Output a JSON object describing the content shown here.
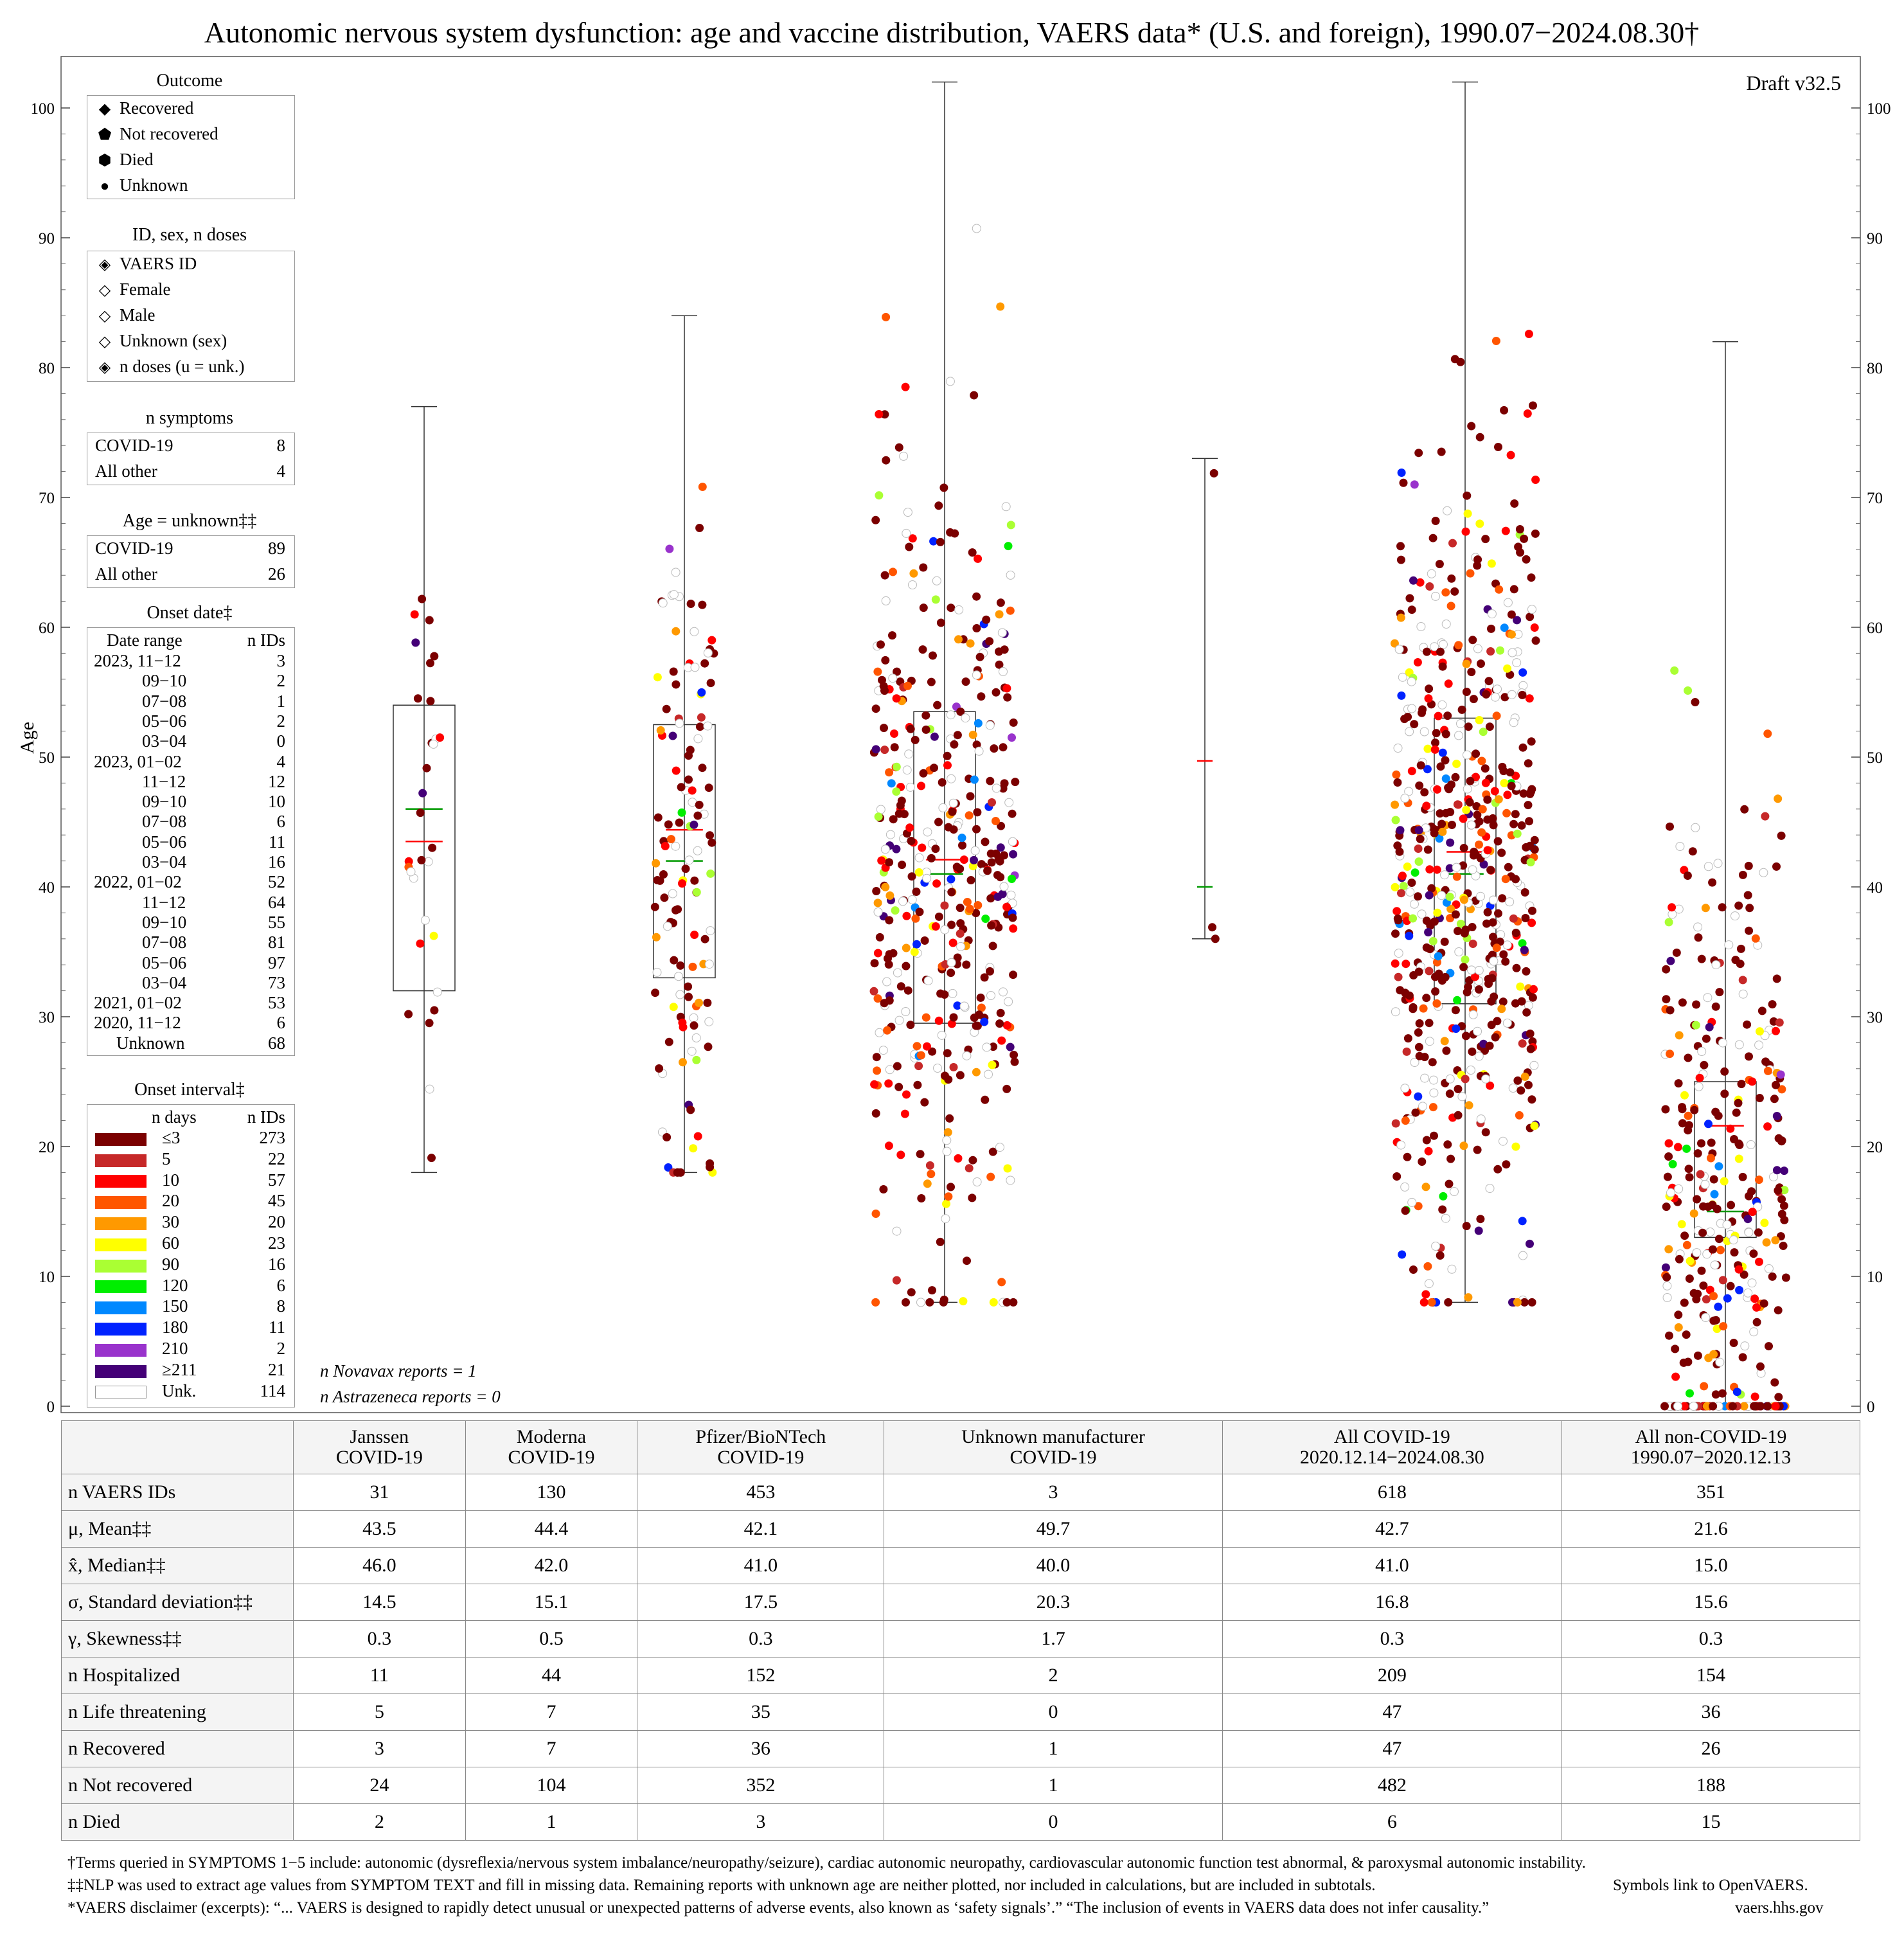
{
  "title": "Autonomic nervous system dysfunction: age and vaccine distribution, VAERS data* (U.S. and foreign), 1990.07−2024.08.30†",
  "draft": "Draft v32.5",
  "y_axis_label": "Age",
  "legend_outcome": {
    "title": "Outcome",
    "items": [
      {
        "symbol": "◆",
        "label": "Recovered"
      },
      {
        "symbol": "⬟",
        "label": "Not recovered"
      },
      {
        "symbol": "⬢",
        "label": "Died"
      },
      {
        "symbol": "●",
        "label": "Unknown"
      }
    ]
  },
  "legend_id": {
    "title": "ID, sex, n doses",
    "items": [
      {
        "symbol": "◈",
        "label": "VAERS ID"
      },
      {
        "symbol": "◇",
        "label": "Female"
      },
      {
        "symbol": "◇",
        "label": "Male"
      },
      {
        "symbol": "◇",
        "label": "Unknown (sex)"
      },
      {
        "symbol": "◈",
        "label": "n doses (u = unk.)"
      }
    ]
  },
  "legend_symptoms": {
    "title": "n symptoms",
    "rows": [
      {
        "label": "COVID-19",
        "value": "8"
      },
      {
        "label": "All other",
        "value": "4"
      }
    ]
  },
  "legend_age_unknown": {
    "title": "Age = unknown‡‡",
    "rows": [
      {
        "label": "COVID-19",
        "value": "89"
      },
      {
        "label": "All other",
        "value": "26"
      }
    ]
  },
  "legend_onset_date": {
    "title": "Onset date‡",
    "header_left": "Date range",
    "header_right": "n IDs",
    "rows": [
      {
        "label": "2023, 11−12",
        "value": "3"
      },
      {
        "label": "09−10",
        "value": "2"
      },
      {
        "label": "07−08",
        "value": "1"
      },
      {
        "label": "05−06",
        "value": "2"
      },
      {
        "label": "03−04",
        "value": "0"
      },
      {
        "label": "2023, 01−02",
        "value": "4"
      },
      {
        "label": "11−12",
        "value": "12"
      },
      {
        "label": "09−10",
        "value": "10"
      },
      {
        "label": "07−08",
        "value": "6"
      },
      {
        "label": "05−06",
        "value": "11"
      },
      {
        "label": "03−04",
        "value": "16"
      },
      {
        "label": "2022, 01−02",
        "value": "52"
      },
      {
        "label": "11−12",
        "value": "64"
      },
      {
        "label": "09−10",
        "value": "55"
      },
      {
        "label": "07−08",
        "value": "81"
      },
      {
        "label": "05−06",
        "value": "97"
      },
      {
        "label": "03−04",
        "value": "73"
      },
      {
        "label": "2021, 01−02",
        "value": "53"
      },
      {
        "label": "2020, 11−12",
        "value": "6"
      },
      {
        "label": "Unknown",
        "value": "68"
      }
    ]
  },
  "legend_onset_interval": {
    "title": "Onset interval‡",
    "header_left": "n days",
    "header_right": "n IDs",
    "rows": [
      {
        "label": "≤3",
        "value": "273",
        "color": "#7b0000"
      },
      {
        "label": "5",
        "value": "22",
        "color": "#c62828"
      },
      {
        "label": "10",
        "value": "57",
        "color": "#ff0000"
      },
      {
        "label": "20",
        "value": "45",
        "color": "#ff5500"
      },
      {
        "label": "30",
        "value": "20",
        "color": "#ff9900"
      },
      {
        "label": "60",
        "value": "23",
        "color": "#ffff00"
      },
      {
        "label": "90",
        "value": "16",
        "color": "#aaff33"
      },
      {
        "label": "120",
        "value": "6",
        "color": "#00ee00"
      },
      {
        "label": "150",
        "value": "8",
        "color": "#0088ff"
      },
      {
        "label": "180",
        "value": "11",
        "color": "#0022ff"
      },
      {
        "label": "210",
        "value": "2",
        "color": "#9933cc"
      },
      {
        "label": "≥211",
        "value": "21",
        "color": "#440077"
      },
      {
        "label": "Unk.",
        "value": "114",
        "color": "#ffffff"
      }
    ]
  },
  "notes": {
    "novavax": "n Novavax reports = 1",
    "astrazeneca": "n Astrazeneca reports = 0"
  },
  "chart_data": {
    "type": "scatter",
    "ylabel": "Age",
    "ylim": [
      0,
      102
    ],
    "y_ticks": [
      0,
      10,
      20,
      30,
      40,
      50,
      60,
      70,
      80,
      90,
      100
    ],
    "categories": [
      "Janssen COVID-19",
      "Moderna COVID-19",
      "Pfizer/BioNTech COVID-19",
      "Unknown manufacturer COVID-19",
      "All COVID-19",
      "All non-COVID-19"
    ],
    "boxes": [
      {
        "category": "Janssen COVID-19",
        "min": 18,
        "q1": 32,
        "median": 46,
        "mean": 43.5,
        "q3": 54,
        "max": 77
      },
      {
        "category": "Moderna COVID-19",
        "min": 18,
        "q1": 33,
        "median": 42,
        "mean": 44.4,
        "q3": 52.5,
        "max": 84
      },
      {
        "category": "Pfizer/BioNTech COVID-19",
        "min": 8,
        "q1": 29.5,
        "median": 41,
        "mean": 42.1,
        "q3": 53.5,
        "max": 102
      },
      {
        "category": "Unknown manufacturer COVID-19",
        "min": 36,
        "median": 40,
        "mean": 49.7,
        "max": 73
      },
      {
        "category": "All COVID-19",
        "min": 8,
        "q1": 31,
        "median": 41,
        "mean": 42.7,
        "q3": 53,
        "max": 102
      },
      {
        "category": "All non-COVID-19",
        "min": 0,
        "q1": 13,
        "median": 15,
        "mean": 21.6,
        "q3": 25,
        "max": 82
      }
    ]
  },
  "table": {
    "columns": [
      [
        "Janssen",
        "COVID-19"
      ],
      [
        "Moderna",
        "COVID-19"
      ],
      [
        "Pfizer/BioNTech",
        "COVID-19"
      ],
      [
        "Unknown manufacturer",
        "COVID-19"
      ],
      [
        "All COVID-19",
        "2020.12.14−2024.08.30"
      ],
      [
        "All non-COVID-19",
        "1990.07−2020.12.13"
      ]
    ],
    "rows": [
      {
        "label": "n VAERS IDs",
        "values": [
          "31",
          "130",
          "453",
          "3",
          "618",
          "351"
        ]
      },
      {
        "label": "μ, Mean‡‡",
        "values": [
          "43.5",
          "44.4",
          "42.1",
          "49.7",
          "42.7",
          "21.6"
        ]
      },
      {
        "label": "x̂, Median‡‡",
        "values": [
          "46.0",
          "42.0",
          "41.0",
          "40.0",
          "41.0",
          "15.0"
        ]
      },
      {
        "label": "σ, Standard deviation‡‡",
        "values": [
          "14.5",
          "15.1",
          "17.5",
          "20.3",
          "16.8",
          "15.6"
        ]
      },
      {
        "label": "γ, Skewness‡‡",
        "values": [
          "0.3",
          "0.5",
          "0.3",
          "1.7",
          "0.3",
          "0.3"
        ]
      },
      {
        "label": "n Hospitalized",
        "values": [
          "11",
          "44",
          "152",
          "2",
          "209",
          "154"
        ]
      },
      {
        "label": "n Life threatening",
        "values": [
          "5",
          "7",
          "35",
          "0",
          "47",
          "36"
        ]
      },
      {
        "label": "n Recovered",
        "values": [
          "3",
          "7",
          "36",
          "1",
          "47",
          "26"
        ]
      },
      {
        "label": "n Not recovered",
        "values": [
          "24",
          "104",
          "352",
          "1",
          "482",
          "188"
        ]
      },
      {
        "label": "n Died",
        "values": [
          "2",
          "1",
          "3",
          "0",
          "6",
          "15"
        ]
      }
    ]
  },
  "footnotes": [
    "†Terms queried in SYMPTOMS 1−5 include: autonomic (dysreflexia/nervous system imbalance/neuropathy/seizure), cardiac autonomic neuropathy, cardiovascular autonomic function test abnormal, & paroxysmal autonomic instability.",
    "‡‡NLP was used to extract age values from SYMPTOM TEXT and fill in missing data. Remaining reports with unknown age are neither plotted, nor included in calculations, but are included in subtotals.",
    "*VAERS disclaimer (excerpts): “... VAERS is designed to rapidly detect unusual or unexpected patterns of adverse events, also known as ‘safety signals’.” “The inclusion of events in VAERS data does not infer causality.”"
  ],
  "footnote_symbols": "Symbols link to OpenVAERS.",
  "footnote_site": "vaers.hhs.gov"
}
